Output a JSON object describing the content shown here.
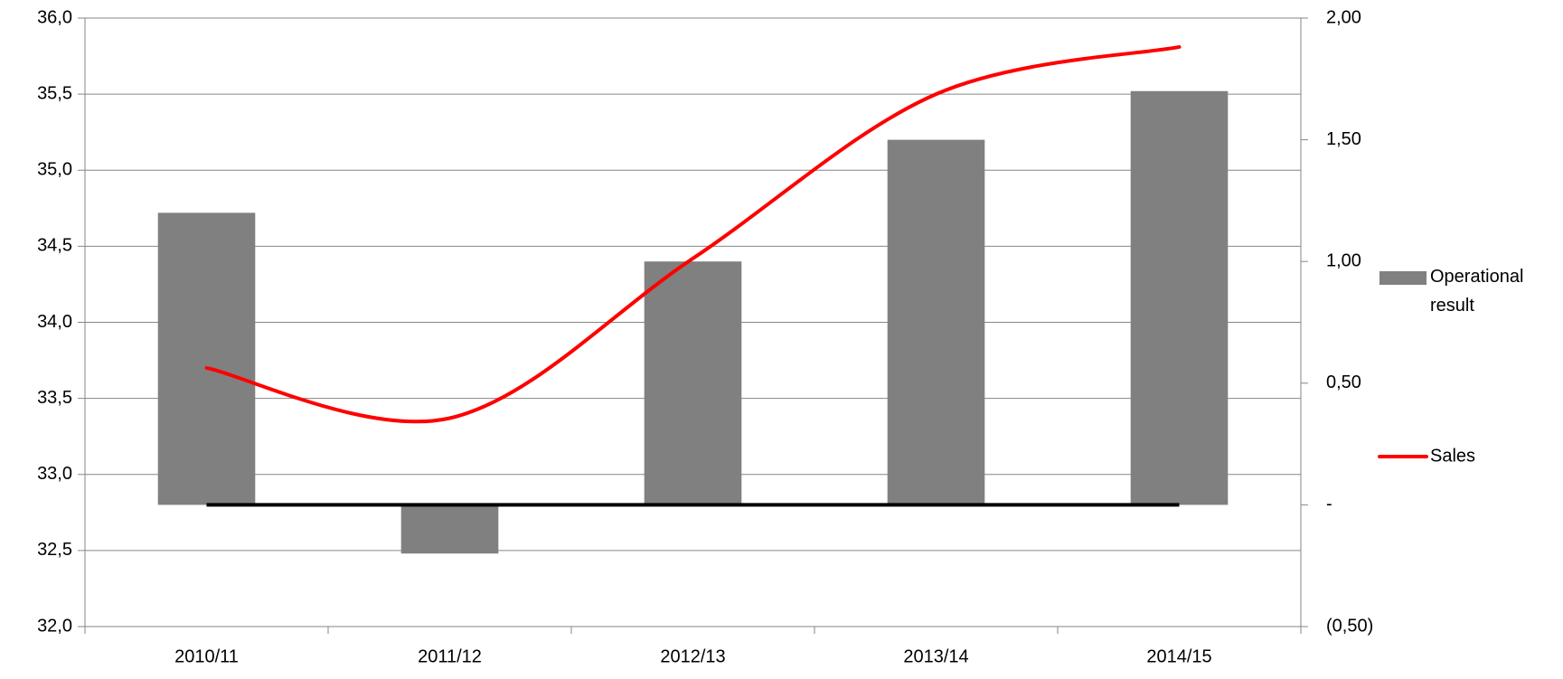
{
  "chart_data": {
    "type": "bar-line",
    "categories": [
      "2010/11",
      "2011/12",
      "2012/13",
      "2013/14",
      "2014/15"
    ],
    "series": [
      {
        "name": "Operational result",
        "type": "bar",
        "color": "#808080",
        "axis": "y2",
        "values": [
          1.2,
          -0.2,
          1.0,
          1.5,
          1.7
        ]
      },
      {
        "name": "Sales",
        "type": "line",
        "color": "#ff0000",
        "axis": "y",
        "values": [
          33.7,
          33.37,
          34.42,
          35.5,
          35.81
        ]
      }
    ],
    "ylim": [
      32.0,
      36.0
    ],
    "yticks": [
      {
        "value": 32.0,
        "label": "32,0"
      },
      {
        "value": 32.5,
        "label": "32,5"
      },
      {
        "value": 33.0,
        "label": "33,0"
      },
      {
        "value": 33.5,
        "label": "33,5"
      },
      {
        "value": 34.0,
        "label": "34,0"
      },
      {
        "value": 34.5,
        "label": "34,5"
      },
      {
        "value": 35.0,
        "label": "35,0"
      },
      {
        "value": 35.5,
        "label": "35,5"
      },
      {
        "value": 36.0,
        "label": "36,0"
      }
    ],
    "y2lim": [
      -0.5,
      2.0
    ],
    "y2ticks": [
      {
        "value": -0.5,
        "label": "(0,50)"
      },
      {
        "value": 0,
        "label": "-"
      },
      {
        "value": 0.5,
        "label": "0,50"
      },
      {
        "value": 1.0,
        "label": "1,00"
      },
      {
        "value": 1.5,
        "label": "1,50"
      },
      {
        "value": 2.0,
        "label": "2,00"
      }
    ],
    "grid": true,
    "legend": "right"
  }
}
